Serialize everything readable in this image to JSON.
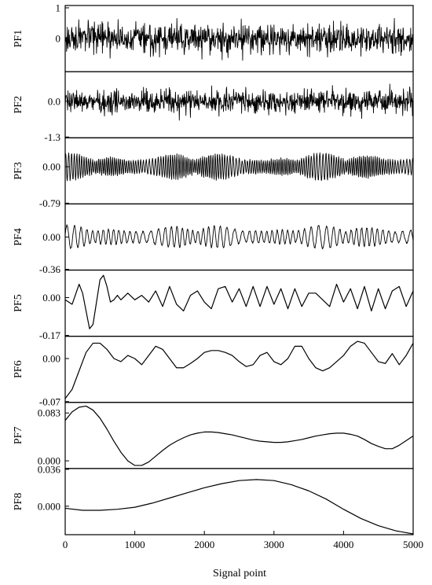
{
  "chart_data": {
    "type": "line",
    "layout": "stacked-panels",
    "xlabel": "Signal point",
    "xlim": [
      0,
      5000
    ],
    "x_ticks": [
      0,
      1000,
      2000,
      3000,
      4000,
      5000
    ],
    "x_tick_labels": [
      "0",
      "1000",
      "2000",
      "3000",
      "4000",
      "5000"
    ],
    "line_color": "#000000",
    "panels": [
      {
        "label": "PF1",
        "ylim": [
          -1.05,
          1.05
        ],
        "y_ticks": [
          1,
          0
        ],
        "y_tick_labels": [
          "1",
          "0"
        ],
        "signal": {
          "kind": "noise",
          "amplitude": 0.55,
          "baseline": 0
        }
      },
      {
        "label": "PF2",
        "ylim": [
          -1.3,
          1.05
        ],
        "y_ticks": [
          0,
          -1.3
        ],
        "y_tick_labels": [
          "0.0",
          "-1.3"
        ],
        "signal": {
          "kind": "noise",
          "amplitude": 0.5,
          "baseline": 0
        }
      },
      {
        "label": "PF3",
        "ylim": [
          -0.79,
          0.61
        ],
        "y_ticks": [
          0,
          -0.79
        ],
        "y_tick_labels": [
          "0.00",
          "-0.79"
        ],
        "signal": {
          "kind": "oscillation",
          "amplitude": 0.3,
          "baseline": 0
        }
      },
      {
        "label": "PF4",
        "ylim": [
          -0.36,
          0.36
        ],
        "y_ticks": [
          0,
          -0.36
        ],
        "y_tick_labels": [
          "0.00",
          "-0.36"
        ],
        "signal": {
          "kind": "oscillation",
          "amplitude": 0.13,
          "baseline": 0
        }
      },
      {
        "label": "PF5",
        "ylim": [
          -0.17,
          0.12
        ],
        "y_ticks": [
          0,
          -0.17
        ],
        "y_tick_labels": [
          "0.00",
          "-0.17"
        ],
        "signal": {
          "kind": "points",
          "x": [
            0,
            100,
            200,
            250,
            300,
            350,
            400,
            450,
            500,
            550,
            600,
            650,
            700,
            750,
            800,
            900,
            1000,
            1100,
            1200,
            1300,
            1400,
            1500,
            1600,
            1700,
            1800,
            1900,
            2000,
            2100,
            2200,
            2300,
            2400,
            2500,
            2600,
            2700,
            2800,
            2900,
            3000,
            3100,
            3200,
            3300,
            3400,
            3500,
            3600,
            3700,
            3800,
            3900,
            4000,
            4100,
            4200,
            4300,
            4400,
            4500,
            4600,
            4700,
            4800,
            4900,
            5000
          ],
          "y": [
            -0.01,
            -0.03,
            0.06,
            0.02,
            -0.06,
            -0.14,
            -0.12,
            -0.02,
            0.08,
            0.1,
            0.05,
            -0.02,
            -0.01,
            0.01,
            -0.01,
            0.02,
            -0.01,
            0.01,
            -0.02,
            0.03,
            -0.04,
            0.05,
            -0.03,
            -0.06,
            0.01,
            0.03,
            -0.02,
            -0.05,
            0.04,
            0.05,
            -0.02,
            0.04,
            -0.04,
            0.05,
            -0.04,
            0.05,
            -0.03,
            0.04,
            -0.05,
            0.04,
            -0.04,
            0.02,
            0.02,
            -0.01,
            -0.04,
            0.06,
            -0.02,
            0.04,
            -0.05,
            0.05,
            -0.06,
            0.04,
            -0.05,
            0.03,
            0.05,
            -0.04,
            0.03
          ]
        }
      },
      {
        "label": "PF6",
        "ylim": [
          -0.07,
          0.035
        ],
        "y_ticks": [
          0,
          -0.07
        ],
        "y_tick_labels": [
          "0.00",
          "-0.07"
        ],
        "signal": {
          "kind": "points",
          "x": [
            0,
            100,
            200,
            300,
            400,
            500,
            600,
            700,
            800,
            900,
            1000,
            1100,
            1200,
            1300,
            1400,
            1500,
            1600,
            1700,
            1800,
            1900,
            2000,
            2100,
            2200,
            2300,
            2400,
            2500,
            2600,
            2700,
            2800,
            2900,
            3000,
            3100,
            3200,
            3300,
            3400,
            3500,
            3600,
            3700,
            3800,
            3900,
            4000,
            4100,
            4200,
            4300,
            4400,
            4500,
            4600,
            4700,
            4800,
            4900,
            5000
          ],
          "y": [
            -0.065,
            -0.05,
            -0.02,
            0.01,
            0.025,
            0.025,
            0.015,
            0.0,
            -0.005,
            0.005,
            0.0,
            -0.01,
            0.005,
            0.02,
            0.015,
            0.0,
            -0.015,
            -0.015,
            -0.008,
            0.0,
            0.01,
            0.013,
            0.013,
            0.01,
            0.005,
            -0.005,
            -0.013,
            -0.01,
            0.005,
            0.01,
            -0.005,
            -0.01,
            0.0,
            0.02,
            0.02,
            0.0,
            -0.015,
            -0.02,
            -0.015,
            -0.005,
            0.005,
            0.02,
            0.028,
            0.025,
            0.01,
            -0.005,
            -0.008,
            0.008,
            -0.01,
            0.005,
            0.025
          ]
        }
      },
      {
        "label": "PF7",
        "ylim": [
          -0.012,
          0.1
        ],
        "y_ticks": [
          0.083,
          0
        ],
        "y_tick_labels": [
          "0.083",
          "0.000"
        ],
        "signal": {
          "kind": "points",
          "x": [
            0,
            100,
            200,
            300,
            400,
            500,
            600,
            700,
            800,
            900,
            1000,
            1100,
            1200,
            1300,
            1400,
            1500,
            1600,
            1700,
            1800,
            1900,
            2000,
            2100,
            2200,
            2300,
            2400,
            2500,
            2600,
            2700,
            2800,
            2900,
            3000,
            3100,
            3200,
            3300,
            3400,
            3500,
            3600,
            3700,
            3800,
            3900,
            4000,
            4100,
            4200,
            4300,
            4400,
            4500,
            4600,
            4700,
            4800,
            4900,
            5000
          ],
          "y": [
            0.07,
            0.085,
            0.093,
            0.095,
            0.088,
            0.074,
            0.055,
            0.034,
            0.015,
            0.0,
            -0.008,
            -0.008,
            -0.002,
            0.008,
            0.018,
            0.027,
            0.034,
            0.04,
            0.045,
            0.048,
            0.05,
            0.05,
            0.049,
            0.047,
            0.045,
            0.042,
            0.039,
            0.036,
            0.034,
            0.033,
            0.032,
            0.032,
            0.033,
            0.035,
            0.037,
            0.04,
            0.043,
            0.045,
            0.047,
            0.048,
            0.048,
            0.046,
            0.043,
            0.037,
            0.03,
            0.025,
            0.021,
            0.021,
            0.027,
            0.035,
            0.043
          ]
        }
      },
      {
        "label": "PF8",
        "ylim": [
          -0.027,
          0.036
        ],
        "y_ticks": [
          0.036,
          0
        ],
        "y_tick_labels": [
          "0.036",
          "0.000"
        ],
        "signal": {
          "kind": "points",
          "x": [
            0,
            250,
            500,
            750,
            1000,
            1250,
            1500,
            1750,
            2000,
            2250,
            2500,
            2750,
            3000,
            3250,
            3500,
            3750,
            4000,
            4250,
            4500,
            4750,
            5000
          ],
          "y": [
            -0.002,
            -0.004,
            -0.004,
            -0.003,
            -0.001,
            0.003,
            0.008,
            0.013,
            0.018,
            0.022,
            0.025,
            0.026,
            0.025,
            0.021,
            0.015,
            0.007,
            -0.003,
            -0.012,
            -0.019,
            -0.024,
            -0.027
          ]
        }
      }
    ]
  }
}
